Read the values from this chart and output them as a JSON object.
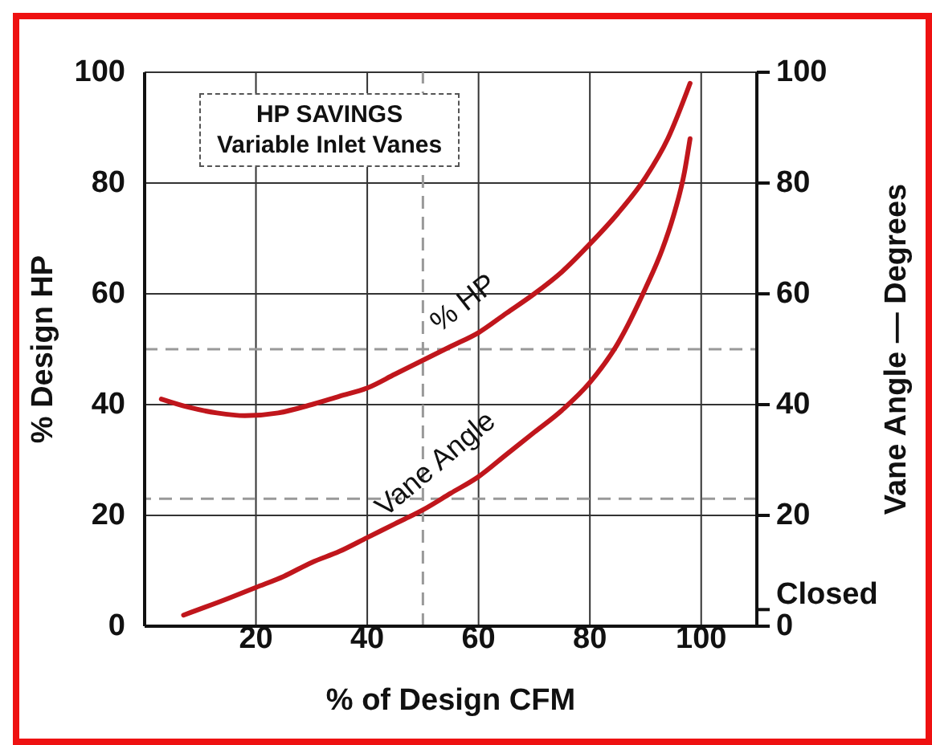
{
  "chart_data": {
    "type": "line",
    "title": "HP SAVINGS\nVariable Inlet Vanes",
    "xlabel": "% of Design CFM",
    "ylabel": "% Design HP",
    "y2label": "Vane Angle — Degrees",
    "series": [
      {
        "name": "% HP",
        "color": "#c0161c",
        "x": [
          3,
          8,
          13,
          18,
          24,
          30,
          35,
          40,
          45,
          50,
          55,
          60,
          65,
          70,
          75,
          80,
          85,
          90,
          94,
          98
        ],
        "values": [
          41,
          39.5,
          38.5,
          38,
          38.5,
          40,
          41.5,
          43,
          45.5,
          48,
          50.5,
          53,
          56.5,
          60,
          64,
          69,
          74.5,
          81,
          88,
          98
        ]
      },
      {
        "name": "Vane Angle",
        "color": "#c0161c",
        "axis": "y2",
        "x": [
          7,
          15,
          20,
          25,
          30,
          35,
          40,
          45,
          50,
          55,
          60,
          65,
          70,
          75,
          80,
          85,
          90,
          93,
          95,
          97,
          98
        ],
        "values": [
          2,
          5,
          7,
          9,
          11.5,
          13.5,
          16,
          18.5,
          21,
          24,
          27,
          31,
          35,
          39,
          44,
          51,
          61,
          68,
          74,
          82,
          88
        ]
      }
    ],
    "xlim": [
      0,
      110
    ],
    "xticks": [
      20,
      40,
      60,
      80,
      100
    ],
    "ylim": [
      0,
      100
    ],
    "yticks": [
      0,
      20,
      40,
      60,
      80,
      100
    ],
    "y2lim": [
      0,
      100
    ],
    "y2ticks": [
      0,
      {
        "value": 3,
        "label": "Closed"
      },
      20,
      40,
      60,
      80,
      100
    ],
    "ref_lines": [
      {
        "axis": "y",
        "value": 50,
        "color": "#999999",
        "line_style": "dashed"
      },
      {
        "axis": "x",
        "value": 50,
        "color": "#999999",
        "line_style": "dashed"
      },
      {
        "axis": "y2",
        "value": 23,
        "color": "#999999",
        "line_style": "dashed"
      }
    ],
    "grid": true,
    "marker": "none",
    "line_style": "solid"
  }
}
